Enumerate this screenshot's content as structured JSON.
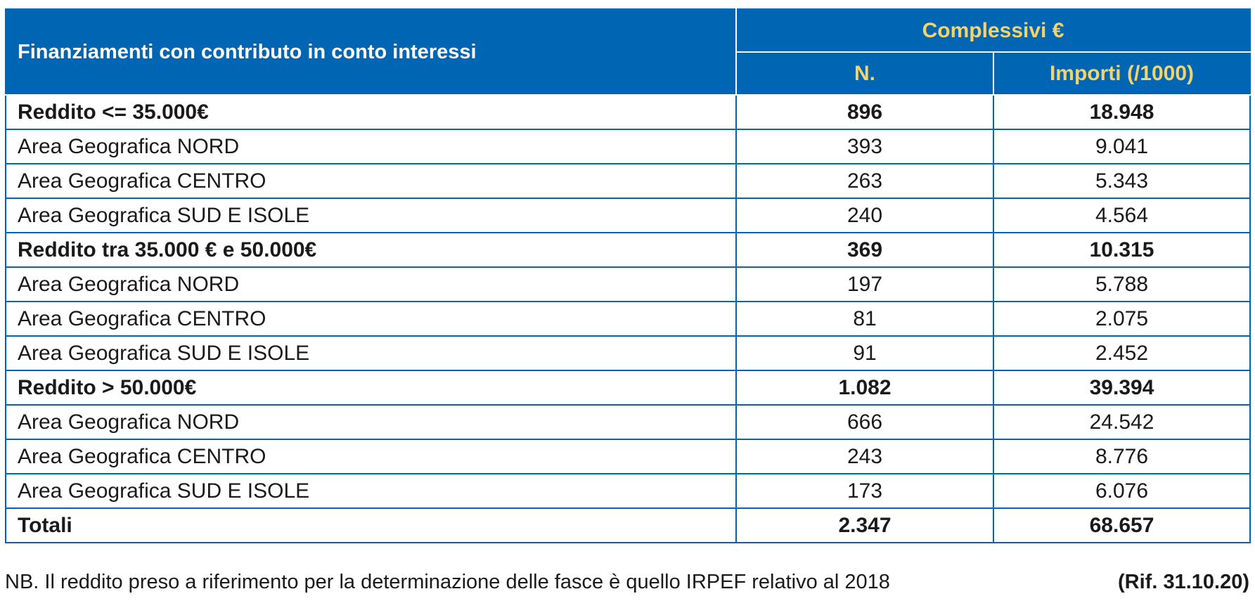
{
  "table": {
    "title": "Finanziamenti con contributo in conto interessi",
    "group_header": "Complessivi €",
    "columns": [
      "N.",
      "Importi (/1000)"
    ],
    "rows": [
      {
        "label": "Reddito <= 35.000€",
        "n": "896",
        "importi": "18.948",
        "bold": true
      },
      {
        "label": "Area Geografica NORD",
        "n": "393",
        "importi": "9.041",
        "bold": false
      },
      {
        "label": "Area Geografica CENTRO",
        "n": "263",
        "importi": "5.343",
        "bold": false
      },
      {
        "label": "Area Geografica SUD E ISOLE",
        "n": "240",
        "importi": "4.564",
        "bold": false
      },
      {
        "label": "Reddito tra 35.000 € e 50.000€",
        "n": "369",
        "importi": "10.315",
        "bold": true
      },
      {
        "label": "Area Geografica NORD",
        "n": "197",
        "importi": "5.788",
        "bold": false
      },
      {
        "label": "Area Geografica CENTRO",
        "n": "81",
        "importi": "2.075",
        "bold": false
      },
      {
        "label": "Area Geografica SUD E ISOLE",
        "n": "91",
        "importi": "2.452",
        "bold": false
      },
      {
        "label": "Reddito > 50.000€",
        "n": "1.082",
        "importi": "39.394",
        "bold": true
      },
      {
        "label": "Area Geografica NORD",
        "n": "666",
        "importi": "24.542",
        "bold": false
      },
      {
        "label": "Area Geografica CENTRO",
        "n": "243",
        "importi": "8.776",
        "bold": false
      },
      {
        "label": "Area Geografica SUD E ISOLE",
        "n": "173",
        "importi": "6.076",
        "bold": false
      },
      {
        "label": "Totali",
        "n": "2.347",
        "importi": "68.657",
        "bold": true
      }
    ]
  },
  "footnote": {
    "text": "NB. Il reddito preso a riferimento per la determinazione delle fasce è quello IRPEF relativo al 2018",
    "ref": "(Rif. 31.10.20)"
  },
  "colors": {
    "header_bg": "#0066b3",
    "header_title_text": "#ffffff",
    "header_col_text": "#f5d26a",
    "grid_line": "#0066b3"
  }
}
